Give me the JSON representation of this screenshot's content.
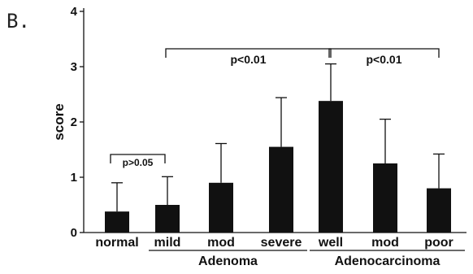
{
  "panel_label": "B.",
  "chart_data": {
    "type": "bar",
    "ylabel": "score",
    "ylim": [
      0,
      4
    ],
    "yticks": [
      "0",
      "1",
      "2",
      "3",
      "4"
    ],
    "categories": [
      "normal",
      "mild",
      "mod",
      "severe",
      "well",
      "mod",
      "poor"
    ],
    "values": [
      0.38,
      0.5,
      0.9,
      1.55,
      2.38,
      1.25,
      0.8
    ],
    "error_upper": [
      0.9,
      1.01,
      1.61,
      2.44,
      3.05,
      2.05,
      1.42
    ],
    "groups": [
      {
        "label": "Adenoma",
        "from": 1,
        "to": 3
      },
      {
        "label": "Adenocarcinoma",
        "from": 4,
        "to": 6
      }
    ],
    "annotations": [
      {
        "text": "p>0.05",
        "from": 0,
        "to": 1
      },
      {
        "text": "p<0.01",
        "from": 1,
        "to": 4
      },
      {
        "text": "p<0.01",
        "from": 4,
        "to": 6
      }
    ],
    "bar_color": "#111111",
    "grid": false
  }
}
